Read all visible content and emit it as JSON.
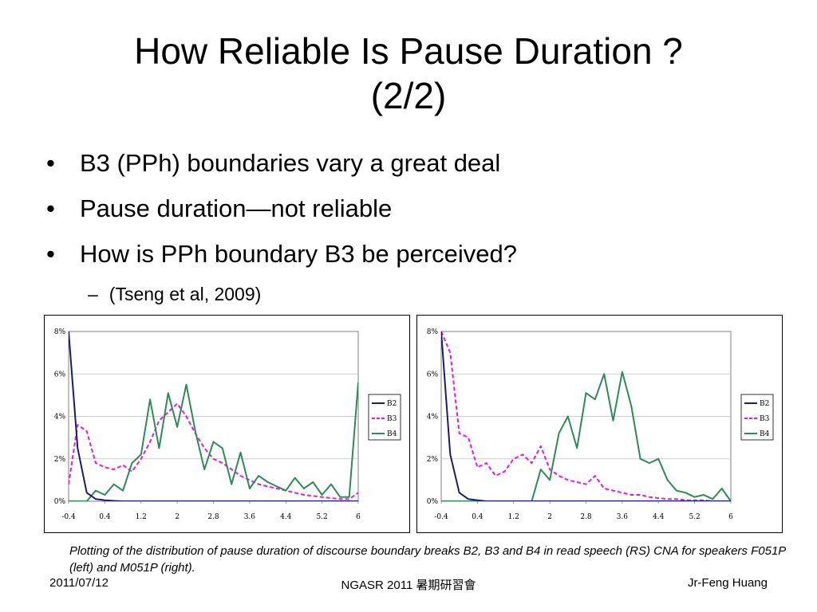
{
  "slide": {
    "title_line1": "How Reliable Is Pause Duration ?",
    "title_line2": "(2/2)",
    "bullets": [
      "B3 (PPh) boundaries vary a great deal",
      "Pause duration—not reliable",
      "How is PPh boundary B3 be perceived?"
    ],
    "sub_dash": "–",
    "sub_bullet": "(Tseng et al, 2009)",
    "caption": "Plotting of the distribution of pause duration of discourse boundary breaks B2, B3 and B4 in read speech (RS) CNA for speakers F051P (left) and M051P (right).",
    "footer_date": "2011/07/12",
    "footer_center": "NGASR 2011 暑期研習會",
    "footer_author": "Jr-Feng Huang"
  },
  "chart_data": [
    {
      "type": "line",
      "x": [
        -0.4,
        -0.2,
        0,
        0.2,
        0.4,
        0.6,
        0.8,
        1,
        1.2,
        1.4,
        1.6,
        1.8,
        2,
        2.2,
        2.4,
        2.6,
        2.8,
        3,
        3.2,
        3.4,
        3.6,
        3.8,
        4,
        4.2,
        4.4,
        4.6,
        4.8,
        5,
        5.2,
        5.4,
        5.6,
        5.8,
        6
      ],
      "xticks": [
        "-0.4",
        "0.4",
        "1.2",
        "2",
        "2.8",
        "3.6",
        "4.4",
        "5.2",
        "6"
      ],
      "yticks": [
        "0%",
        "2%",
        "4%",
        "6%",
        "8%"
      ],
      "ylim": [
        0,
        8
      ],
      "xlim": [
        -0.4,
        6
      ],
      "legend_position": "right",
      "colors": {
        "B2": "#1a1a7a",
        "B3": "#e619e6",
        "B4": "#2e8b57"
      },
      "series": [
        {
          "name": "B2",
          "style": "solid",
          "values": [
            8,
            2.5,
            0.4,
            0.1,
            0.05,
            0.02,
            0,
            0,
            0,
            0,
            0,
            0,
            0,
            0,
            0,
            0,
            0,
            0,
            0,
            0,
            0,
            0,
            0,
            0,
            0,
            0,
            0,
            0,
            0,
            0,
            0,
            0,
            0
          ]
        },
        {
          "name": "B3",
          "style": "dashed",
          "values": [
            0.8,
            3.6,
            3.3,
            1.8,
            1.6,
            1.5,
            1.7,
            1.4,
            2,
            2.8,
            3.8,
            4.2,
            4.6,
            4,
            3.2,
            2.5,
            2,
            1.8,
            1.5,
            1.2,
            1,
            0.8,
            0.7,
            0.6,
            0.5,
            0.4,
            0.3,
            0.25,
            0.2,
            0.15,
            0.1,
            0.1,
            0.4
          ]
        },
        {
          "name": "B4",
          "style": "solid",
          "values": [
            0,
            0,
            0,
            0.5,
            0.3,
            0.8,
            0.5,
            1.8,
            2.2,
            4.8,
            2.5,
            5.1,
            3.5,
            5.5,
            3.3,
            1.5,
            2.8,
            2.5,
            0.8,
            2.3,
            0.6,
            1.2,
            0.9,
            0.7,
            0.5,
            1.1,
            0.6,
            0.9,
            0.3,
            0.8,
            0.2,
            0.2,
            5.6
          ]
        }
      ]
    },
    {
      "type": "line",
      "x": [
        -0.4,
        -0.2,
        0,
        0.2,
        0.4,
        0.6,
        0.8,
        1,
        1.2,
        1.4,
        1.6,
        1.8,
        2,
        2.2,
        2.4,
        2.6,
        2.8,
        3,
        3.2,
        3.4,
        3.6,
        3.8,
        4,
        4.2,
        4.4,
        4.6,
        4.8,
        5,
        5.2,
        5.4,
        5.6,
        5.8,
        6
      ],
      "xticks": [
        "-0.4",
        "0.4",
        "1.2",
        "2",
        "2.8",
        "3.6",
        "4.4",
        "5.2",
        "6"
      ],
      "yticks": [
        "0%",
        "2%",
        "4%",
        "6%",
        "8%"
      ],
      "ylim": [
        0,
        8
      ],
      "xlim": [
        -0.4,
        6
      ],
      "legend_position": "right",
      "colors": {
        "B2": "#1a1a7a",
        "B3": "#e619e6",
        "B4": "#2e8b57"
      },
      "series": [
        {
          "name": "B2",
          "style": "solid",
          "values": [
            8,
            2.2,
            0.4,
            0.1,
            0.05,
            0,
            0,
            0,
            0,
            0,
            0,
            0,
            0,
            0,
            0,
            0,
            0,
            0,
            0,
            0,
            0,
            0,
            0,
            0,
            0,
            0,
            0,
            0,
            0,
            0,
            0,
            0,
            0
          ]
        },
        {
          "name": "B3",
          "style": "dashed",
          "values": [
            8,
            7,
            3.2,
            3,
            1.6,
            1.8,
            1.2,
            1.4,
            2,
            2.2,
            1.8,
            2.6,
            1.5,
            1.2,
            1,
            0.9,
            0.8,
            1.2,
            0.6,
            0.5,
            0.4,
            0.3,
            0.3,
            0.2,
            0.15,
            0.1,
            0.1,
            0.05,
            0.05,
            0.05,
            0,
            0,
            0
          ]
        },
        {
          "name": "B4",
          "style": "solid",
          "values": [
            0,
            0,
            0,
            0,
            0,
            0,
            0,
            0,
            0,
            0,
            0,
            1.5,
            1,
            3.2,
            4,
            2.5,
            5.1,
            4.8,
            6,
            3.8,
            6.1,
            4.5,
            2,
            1.8,
            2,
            1,
            0.5,
            0.4,
            0.2,
            0.3,
            0.1,
            0.6,
            0
          ]
        }
      ]
    }
  ]
}
